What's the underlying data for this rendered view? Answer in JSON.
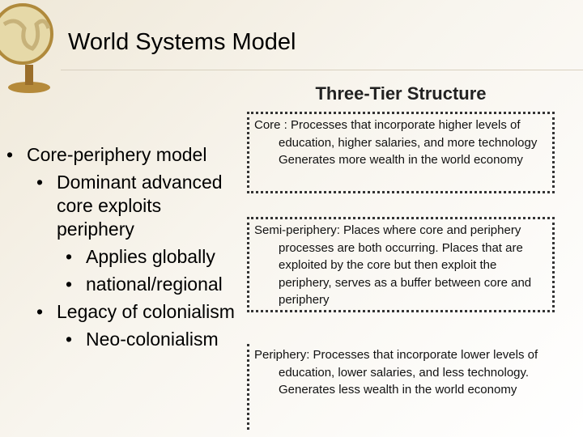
{
  "title": "World Systems Model",
  "subtitle": "Three-Tier Structure",
  "bullets": [
    {
      "text": "Core-periphery model",
      "level": 1
    },
    {
      "text": "Dominant advanced core exploits periphery",
      "level": 2
    },
    {
      "text": "Applies globally",
      "level": 3
    },
    {
      "text": "national/regional",
      "level": 3
    },
    {
      "text": "Legacy of colonialism",
      "level": 2
    },
    {
      "text": "Neo-colonialism",
      "level": 3
    }
  ],
  "boxes": [
    {
      "text": "Core : Processes that incorporate higher levels of education, higher salaries, and more technology Generates more wealth in the world economy"
    },
    {
      "text": "Semi-periphery: Places where core and periphery processes are both occurring. Places that are exploited by the core but then exploit the periphery, serves as a buffer between core and periphery"
    },
    {
      "text": "Periphery: Processes that incorporate lower levels of education, lower salaries, and less technology. Generates less wealth in the world economy"
    }
  ]
}
